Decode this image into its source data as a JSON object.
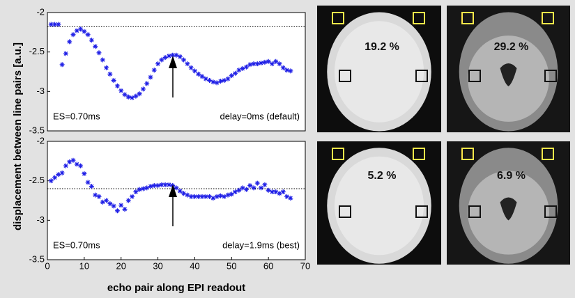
{
  "chart_data": [
    {
      "type": "scatter",
      "y_label": "displacement between line pairs [a.u.]",
      "annotations": [
        "ES=0.70ms",
        "delay=0ms (default)"
      ],
      "reference_line": -2.18,
      "xlim": [
        0,
        70
      ],
      "ylim": [
        -3.5,
        -2
      ],
      "yticks": [
        -2,
        -2.5,
        -3,
        -3.5
      ],
      "series": [
        {
          "color": "#1f1fe6",
          "x": [
            1,
            2,
            3,
            4,
            5,
            6,
            7,
            8,
            9,
            10,
            11,
            12,
            13,
            14,
            15,
            16,
            17,
            18,
            19,
            20,
            21,
            22,
            23,
            24,
            25,
            26,
            27,
            28,
            29,
            30,
            31,
            32,
            33,
            34,
            35,
            36,
            37,
            38,
            39,
            40,
            41,
            42,
            43,
            44,
            45,
            46,
            47,
            48,
            49,
            50,
            51,
            52,
            53,
            54,
            55,
            56,
            57,
            58,
            59,
            60,
            61,
            62,
            63,
            64,
            65,
            66
          ],
          "values": [
            -2.15,
            -2.15,
            -2.15,
            -2.66,
            -2.52,
            -2.37,
            -2.28,
            -2.23,
            -2.21,
            -2.24,
            -2.28,
            -2.35,
            -2.43,
            -2.51,
            -2.6,
            -2.7,
            -2.78,
            -2.86,
            -2.93,
            -2.99,
            -3.04,
            -3.07,
            -3.08,
            -3.06,
            -3.03,
            -2.97,
            -2.9,
            -2.82,
            -2.73,
            -2.65,
            -2.6,
            -2.57,
            -2.55,
            -2.54,
            -2.54,
            -2.56,
            -2.6,
            -2.65,
            -2.7,
            -2.74,
            -2.78,
            -2.81,
            -2.84,
            -2.86,
            -2.88,
            -2.89,
            -2.87,
            -2.86,
            -2.84,
            -2.8,
            -2.77,
            -2.73,
            -2.71,
            -2.69,
            -2.66,
            -2.65,
            -2.65,
            -2.64,
            -2.63,
            -2.62,
            -2.65,
            -2.62,
            -2.65,
            -2.7,
            -2.73,
            -2.74
          ]
        }
      ]
    },
    {
      "type": "scatter",
      "x_label": "echo pair along EPI readout",
      "annotations": [
        "ES=0.70ms",
        "delay=1.9ms (best)"
      ],
      "reference_line": -2.6,
      "xlim": [
        0,
        70
      ],
      "xticks": [
        0,
        10,
        20,
        30,
        40,
        50,
        60,
        70
      ],
      "ylim": [
        -3.5,
        -2
      ],
      "yticks": [
        -2,
        -2.5,
        -3,
        -3.5
      ],
      "series": [
        {
          "color": "#1f1fe6",
          "x": [
            1,
            2,
            3,
            4,
            5,
            6,
            7,
            8,
            9,
            10,
            11,
            12,
            13,
            14,
            15,
            16,
            17,
            18,
            19,
            20,
            21,
            22,
            23,
            24,
            25,
            26,
            27,
            28,
            29,
            30,
            31,
            32,
            33,
            34,
            35,
            36,
            37,
            38,
            39,
            40,
            41,
            42,
            43,
            44,
            45,
            46,
            47,
            48,
            49,
            50,
            51,
            52,
            53,
            54,
            55,
            56,
            57,
            58,
            59,
            60,
            61,
            62,
            63,
            64,
            65,
            66
          ],
          "values": [
            -2.5,
            -2.46,
            -2.42,
            -2.4,
            -2.31,
            -2.26,
            -2.24,
            -2.29,
            -2.31,
            -2.41,
            -2.52,
            -2.57,
            -2.68,
            -2.7,
            -2.77,
            -2.75,
            -2.79,
            -2.82,
            -2.88,
            -2.81,
            -2.86,
            -2.75,
            -2.7,
            -2.64,
            -2.61,
            -2.6,
            -2.59,
            -2.57,
            -2.56,
            -2.56,
            -2.55,
            -2.55,
            -2.55,
            -2.56,
            -2.59,
            -2.63,
            -2.66,
            -2.68,
            -2.7,
            -2.7,
            -2.7,
            -2.7,
            -2.7,
            -2.7,
            -2.72,
            -2.7,
            -2.69,
            -2.7,
            -2.68,
            -2.67,
            -2.64,
            -2.62,
            -2.59,
            -2.61,
            -2.56,
            -2.59,
            -2.53,
            -2.59,
            -2.55,
            -2.62,
            -2.64,
            -2.64,
            -2.66,
            -2.64,
            -2.7,
            -2.72
          ]
        }
      ]
    }
  ],
  "images": [
    {
      "label": "19.2 %"
    },
    {
      "label": "29.2 %"
    },
    {
      "label": "5.2 %"
    },
    {
      "label": "6.9 %"
    }
  ]
}
